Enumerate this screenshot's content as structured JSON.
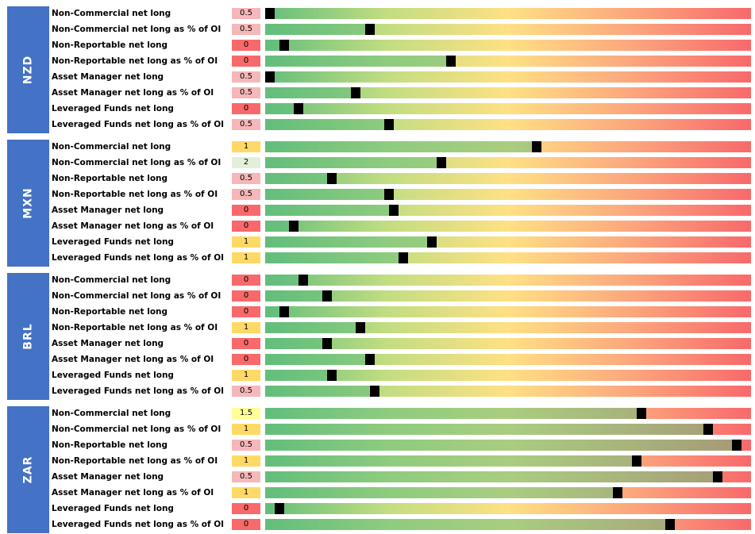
{
  "chart_data": {
    "type": "bar",
    "scale": [
      0,
      100
    ],
    "groups": [
      {
        "currency": "NZD",
        "rows": [
          {
            "label": "Non-Commercial net long",
            "score": "0.5",
            "score_color": "#f5b7b9",
            "percentile": 1
          },
          {
            "label": "Non-Commercial net long as % of OI",
            "score": "0.5",
            "score_color": "#f5b7b9",
            "percentile": 21.5
          },
          {
            "label": "Non-Reportable net long",
            "score": "0",
            "score_color": "#f8696b",
            "percentile": 3.9
          },
          {
            "label": "Non-Reportable net long as % of OI",
            "score": "0",
            "score_color": "#f8696b",
            "percentile": 38.2
          },
          {
            "label": "Asset Manager net long",
            "score": "0.5",
            "score_color": "#f5b7b9",
            "percentile": 1
          },
          {
            "label": "Asset Manager net long as % of OI",
            "score": "0.5",
            "score_color": "#f5b7b9",
            "percentile": 18.6
          },
          {
            "label": "Leveraged Funds net long",
            "score": "0",
            "score_color": "#f8696b",
            "percentile": 6.9
          },
          {
            "label": "Leveraged Funds net long as % of OI",
            "score": "0.5",
            "score_color": "#f5b7b9",
            "percentile": 25.5
          }
        ]
      },
      {
        "currency": "MXN",
        "rows": [
          {
            "label": "Non-Commercial net long",
            "score": "1",
            "score_color": "#ffd966",
            "percentile": 55.9
          },
          {
            "label": "Non-Commercial net long as % of OI",
            "score": "2",
            "score_color": "#e2efda",
            "percentile": 36.3
          },
          {
            "label": "Non-Reportable net long",
            "score": "0.5",
            "score_color": "#f5b7b9",
            "percentile": 13.7
          },
          {
            "label": "Non-Reportable net long as % of OI",
            "score": "0.5",
            "score_color": "#f5b7b9",
            "percentile": 25.5
          },
          {
            "label": "Asset Manager net long",
            "score": "0",
            "score_color": "#f8696b",
            "percentile": 26.5
          },
          {
            "label": "Asset Manager net long as % of OI",
            "score": "0",
            "score_color": "#f8696b",
            "percentile": 5.9
          },
          {
            "label": "Leveraged Funds net long",
            "score": "1",
            "score_color": "#ffd966",
            "percentile": 34.3
          },
          {
            "label": "Leveraged Funds net long as % of OI",
            "score": "1",
            "score_color": "#ffd966",
            "percentile": 28.4
          }
        ]
      },
      {
        "currency": "BRL",
        "rows": [
          {
            "label": "Non-Commercial net long",
            "score": "0",
            "score_color": "#f8696b",
            "percentile": 7.8
          },
          {
            "label": "Non-Commercial net long as % of OI",
            "score": "0",
            "score_color": "#f8696b",
            "percentile": 12.7
          },
          {
            "label": "Non-Reportable net long",
            "score": "0",
            "score_color": "#f8696b",
            "percentile": 3.9
          },
          {
            "label": "Non-Reportable net long as % of OI",
            "score": "1",
            "score_color": "#ffd966",
            "percentile": 19.6
          },
          {
            "label": "Asset Manager net long",
            "score": "0",
            "score_color": "#f8696b",
            "percentile": 12.7
          },
          {
            "label": "Asset Manager net long as % of OI",
            "score": "0",
            "score_color": "#f8696b",
            "percentile": 21.5
          },
          {
            "label": "Leveraged Funds net long",
            "score": "1",
            "score_color": "#ffd966",
            "percentile": 13.7
          },
          {
            "label": "Leveraged Funds net long as % of OI",
            "score": "0.5",
            "score_color": "#f5b7b9",
            "percentile": 22.5
          }
        ]
      },
      {
        "currency": "ZAR",
        "rows": [
          {
            "label": "Non-Commercial net long",
            "score": "1.5",
            "score_color": "#ffff99",
            "percentile": 77.5
          },
          {
            "label": "Non-Commercial net long as % of OI",
            "score": "1",
            "score_color": "#ffd966",
            "percentile": 91.2
          },
          {
            "label": "Non-Reportable net long",
            "score": "0.5",
            "score_color": "#f5b7b9",
            "percentile": 97.1
          },
          {
            "label": "Non-Reportable net long as % of OI",
            "score": "1",
            "score_color": "#ffd966",
            "percentile": 76.5
          },
          {
            "label": "Asset Manager net long",
            "score": "0.5",
            "score_color": "#f5b7b9",
            "percentile": 93.1
          },
          {
            "label": "Asset Manager net long as % of OI",
            "score": "1",
            "score_color": "#ffd966",
            "percentile": 72.5
          },
          {
            "label": "Leveraged Funds net long",
            "score": "0",
            "score_color": "#f8696b",
            "percentile": 2.9
          },
          {
            "label": "Leveraged Funds net long as % of OI",
            "score": "0",
            "score_color": "#f8696b",
            "percentile": 83.3
          }
        ]
      }
    ]
  }
}
